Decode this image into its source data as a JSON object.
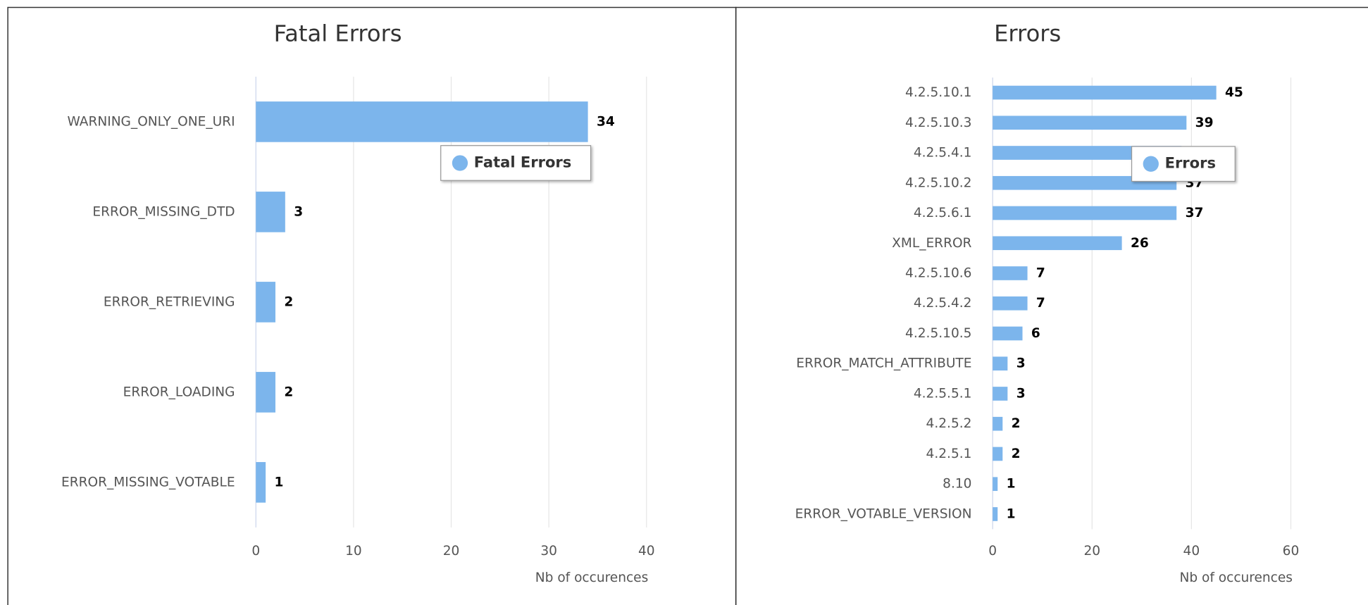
{
  "chart_data": [
    {
      "type": "bar",
      "orientation": "horizontal",
      "title": "Fatal Errors",
      "x_label": "Nb of occurences",
      "categories": [
        "WARNING_ONLY_ONE_URI",
        "ERROR_MISSING_DTD",
        "ERROR_RETRIEVING",
        "ERROR_LOADING",
        "ERROR_MISSING_VOTABLE"
      ],
      "series": [
        {
          "name": "Fatal Errors",
          "color": "#7cb5ec",
          "values": [
            34,
            3,
            2,
            2,
            1
          ]
        }
      ],
      "xlim": [
        0,
        40
      ],
      "xticks": [
        0,
        10,
        20,
        30,
        40
      ],
      "grid": true,
      "legend_position": "top-right"
    },
    {
      "type": "bar",
      "orientation": "horizontal",
      "title": "Errors",
      "x_label": "Nb of occurences",
      "categories": [
        "4.2.5.10.1",
        "4.2.5.10.3",
        "4.2.5.4.1",
        "4.2.5.10.2",
        "4.2.5.6.1",
        "XML_ERROR",
        "4.2.5.10.6",
        "4.2.5.4.2",
        "4.2.5.10.5",
        "ERROR_MATCH_ATTRIBUTE",
        "4.2.5.5.1",
        "4.2.5.2",
        "4.2.5.1",
        "8.10",
        "ERROR_VOTABLE_VERSION"
      ],
      "series": [
        {
          "name": "Errors",
          "color": "#7cb5ec",
          "values": [
            45,
            39,
            38,
            37,
            37,
            26,
            7,
            7,
            6,
            3,
            3,
            2,
            2,
            1,
            1
          ]
        }
      ],
      "xlim": [
        0,
        60
      ],
      "xticks": [
        0,
        20,
        40,
        60
      ],
      "grid": true,
      "legend_position": "top-right"
    }
  ]
}
